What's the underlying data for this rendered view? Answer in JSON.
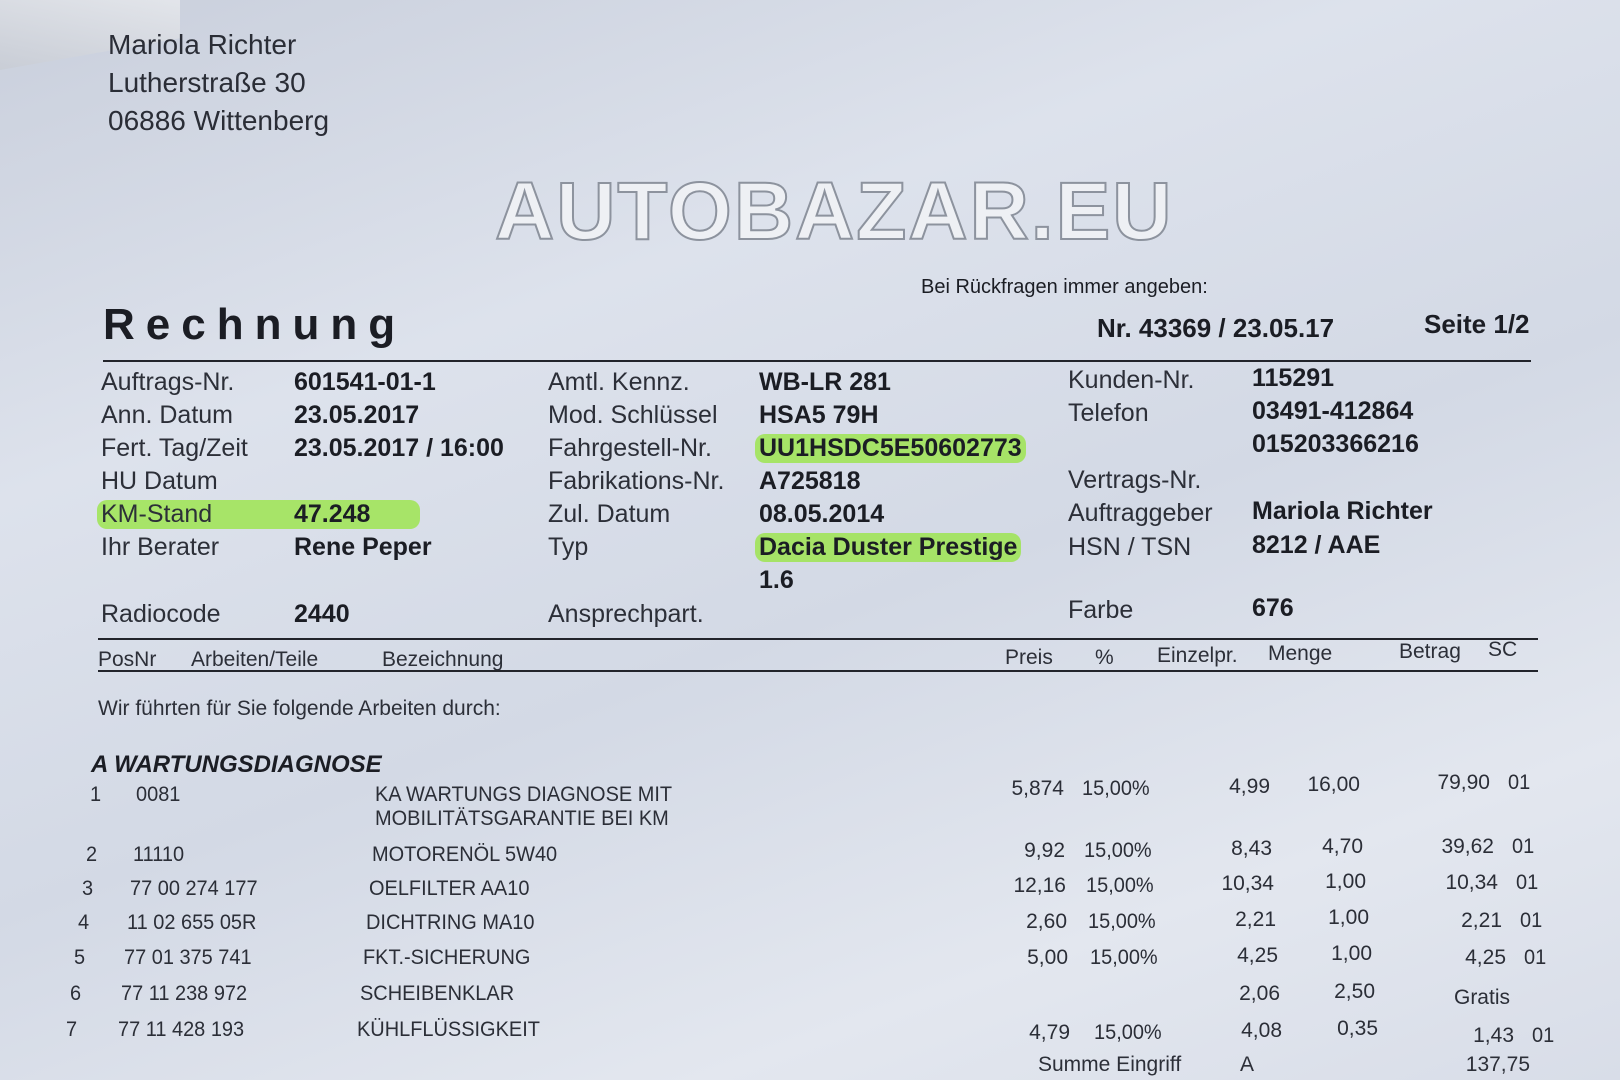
{
  "address": [
    "Mariola Richter",
    "Lutherstraße 30",
    "06886 Wittenberg"
  ],
  "reference_note": "Bei Rückfragen immer angeben:",
  "title": "Rechnung",
  "invoice_number": "Nr. 43369 / 23.05.17",
  "page": "Seite 1/2",
  "watermark": "AUTOBAZAR.EU",
  "highlight_color": "#96e63c",
  "fields_left": [
    {
      "label": "Auftrags-Nr.",
      "value": "601541-01-1"
    },
    {
      "label": "Ann. Datum",
      "value": "23.05.2017"
    },
    {
      "label": "Fert. Tag/Zeit",
      "value": "23.05.2017 / 16:00"
    },
    {
      "label": "HU Datum",
      "value": ""
    },
    {
      "label": "KM-Stand",
      "value": "47.248"
    },
    {
      "label": "Ihr Berater",
      "value": "Rene Peper"
    },
    {
      "label": "Radiocode",
      "value": "2440"
    }
  ],
  "fields_mid": [
    {
      "label": "Amtl. Kennz.",
      "value": "WB-LR 281"
    },
    {
      "label": "Mod. Schlüssel",
      "value": "HSA5 79H"
    },
    {
      "label": "Fahrgestell-Nr.",
      "value": "UU1HSDC5E50602773"
    },
    {
      "label": "Fabrikations-Nr.",
      "value": "A725818"
    },
    {
      "label": "Zul. Datum",
      "value": "08.05.2014"
    },
    {
      "label": "Typ",
      "value": "Dacia Duster Prestige",
      "value2": "1.6"
    },
    {
      "label": "Ansprechpart.",
      "value": ""
    }
  ],
  "fields_right": [
    {
      "label": "Kunden-Nr.",
      "value": "115291"
    },
    {
      "label": "Telefon",
      "value": "03491-412864",
      "value2": "015203366216"
    },
    {
      "label": "Vertrags-Nr.",
      "value": ""
    },
    {
      "label": "Auftraggeber",
      "value": "Mariola Richter"
    },
    {
      "label": "HSN / TSN",
      "value": "8212 / AAE"
    },
    {
      "label": "Farbe",
      "value": "676"
    }
  ],
  "columns": [
    "PosNr",
    "Arbeiten/Teile",
    "Bezeichnung",
    "Preis",
    "%",
    "Einzelpr.",
    "Menge",
    "Betrag",
    "SC"
  ],
  "intro": "Wir führten für Sie folgende Arbeiten durch:",
  "section": "A WARTUNGSDIAGNOSE",
  "items": [
    {
      "pos": "1",
      "part": "0081",
      "desc": "KA WARTUNGS DIAGNOSE MIT",
      "desc2": "MOBILITÄTSGARANTIE BEI KM",
      "preis": "5,874",
      "pct": "15,00%",
      "einzel": "4,99",
      "menge": "16,00",
      "betrag": "79,90",
      "sc": "01"
    },
    {
      "pos": "2",
      "part": "11110",
      "desc": "MOTORENÖL 5W40",
      "preis": "9,92",
      "pct": "15,00%",
      "einzel": "8,43",
      "menge": "4,70",
      "betrag": "39,62",
      "sc": "01"
    },
    {
      "pos": "3",
      "part": "77 00 274 177",
      "desc": "OELFILTER    AA10",
      "preis": "12,16",
      "pct": "15,00%",
      "einzel": "10,34",
      "menge": "1,00",
      "betrag": "10,34",
      "sc": "01"
    },
    {
      "pos": "4",
      "part": "11 02 655 05R",
      "desc": "DICHTRING    MA10",
      "preis": "2,60",
      "pct": "15,00%",
      "einzel": "2,21",
      "menge": "1,00",
      "betrag": "2,21",
      "sc": "01"
    },
    {
      "pos": "5",
      "part": "77 01 375 741",
      "desc": "FKT.-SICHERUNG",
      "preis": "5,00",
      "pct": "15,00%",
      "einzel": "4,25",
      "menge": "1,00",
      "betrag": "4,25",
      "sc": "01"
    },
    {
      "pos": "6",
      "part": "77 11 238 972",
      "desc": "SCHEIBENKLAR",
      "preis": "",
      "pct": "",
      "einzel": "2,06",
      "menge": "2,50",
      "betrag": "Gratis",
      "sc": ""
    },
    {
      "pos": "7",
      "part": "77 11 428 193",
      "desc": "KÜHLFLÜSSIGKEIT",
      "preis": "4,79",
      "pct": "15,00%",
      "einzel": "4,08",
      "menge": "0,35",
      "betrag": "1,43",
      "sc": "01"
    }
  ],
  "sum": {
    "label": "Summe Eingriff",
    "group": "A",
    "value": "137,75"
  }
}
